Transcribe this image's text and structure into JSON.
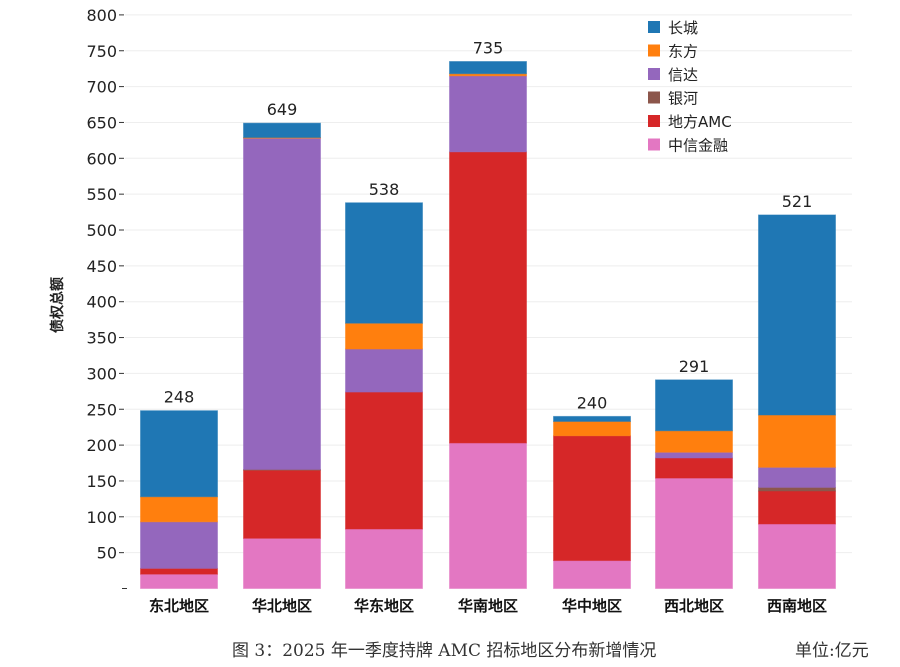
{
  "chart_data": {
    "type": "bar",
    "stacked": true,
    "title": "",
    "xlabel": "",
    "ylabel": "债权总额",
    "ylim": [
      0,
      800
    ],
    "yticks": [
      50,
      100,
      150,
      200,
      250,
      300,
      350,
      400,
      450,
      500,
      550,
      600,
      650,
      700,
      750,
      800
    ],
    "grid": true,
    "legend_position": "top-right",
    "categories": [
      "东北地区",
      "华北地区",
      "华东地区",
      "华南地区",
      "华中地区",
      "西北地区",
      "西南地区"
    ],
    "totals": [
      248,
      649,
      538,
      735,
      240,
      291,
      521
    ],
    "series": [
      {
        "name": "中信金融",
        "color": "#e377c2",
        "values": [
          20,
          70,
          83,
          203,
          39,
          154,
          90
        ]
      },
      {
        "name": "地方AMC",
        "color": "#d62728",
        "values": [
          8,
          95,
          191,
          406,
          174,
          28,
          46
        ]
      },
      {
        "name": "银河",
        "color": "#8c564b",
        "values": [
          0,
          1,
          0,
          0,
          0,
          0,
          5
        ]
      },
      {
        "name": "信达",
        "color": "#9467bd",
        "values": [
          65,
          462,
          60,
          106,
          0,
          8,
          28
        ]
      },
      {
        "name": "东方",
        "color": "#ff7f0e",
        "values": [
          35,
          1,
          36,
          3,
          20,
          30,
          73
        ]
      },
      {
        "name": "长城",
        "color": "#1f77b4",
        "values": [
          120,
          20,
          168,
          17,
          7,
          71,
          279
        ]
      }
    ]
  },
  "caption": "图 3：2025 年一季度持牌 AMC 招标地区分布新增情况",
  "unit": "单位:亿元"
}
